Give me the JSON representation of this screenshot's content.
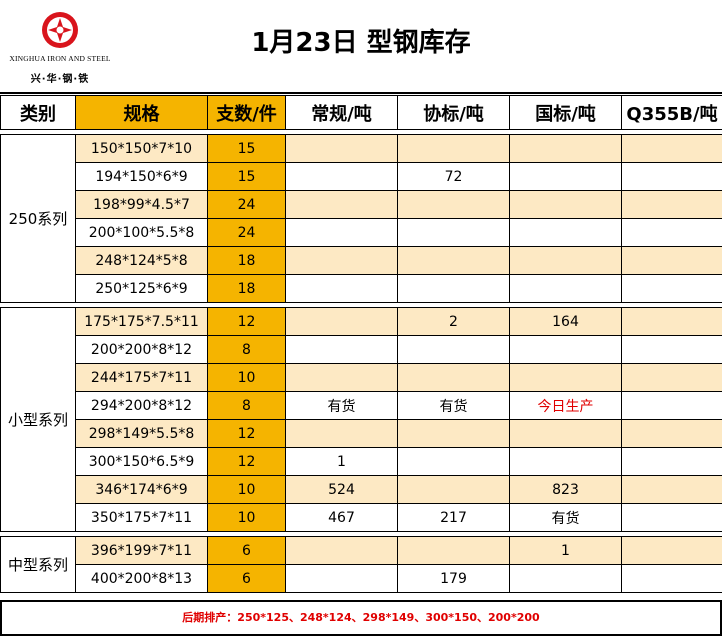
{
  "logo": {
    "english": "XINGHUA IRON AND STEEL",
    "chinese": "兴·华·钢·铁",
    "accent_color": "#d9141c"
  },
  "title": "1月23日 型钢库存",
  "columns": [
    "类别",
    "规格",
    "支数/件",
    "常规/吨",
    "协标/吨",
    "国标/吨",
    "Q355B/吨"
  ],
  "colors": {
    "orange": "#f5b400",
    "stripe": "#fde9c4",
    "red": "#e00000"
  },
  "groups": [
    {
      "name": "250系列",
      "rows": [
        {
          "spec": "150*150*7*10",
          "qty": "15",
          "regular": "",
          "assoc": "",
          "national": "",
          "q355b": ""
        },
        {
          "spec": "194*150*6*9",
          "qty": "15",
          "regular": "",
          "assoc": "72",
          "national": "",
          "q355b": ""
        },
        {
          "spec": "198*99*4.5*7",
          "qty": "24",
          "regular": "",
          "assoc": "",
          "national": "",
          "q355b": ""
        },
        {
          "spec": "200*100*5.5*8",
          "qty": "24",
          "regular": "",
          "assoc": "",
          "national": "",
          "q355b": ""
        },
        {
          "spec": "248*124*5*8",
          "qty": "18",
          "regular": "",
          "assoc": "",
          "national": "",
          "q355b": ""
        },
        {
          "spec": "250*125*6*9",
          "qty": "18",
          "regular": "",
          "assoc": "",
          "national": "",
          "q355b": ""
        }
      ]
    },
    {
      "name": "小型系列",
      "rows": [
        {
          "spec": "175*175*7.5*11",
          "qty": "12",
          "regular": "",
          "assoc": "2",
          "national": "164",
          "q355b": ""
        },
        {
          "spec": "200*200*8*12",
          "qty": "8",
          "regular": "",
          "assoc": "",
          "national": "",
          "q355b": ""
        },
        {
          "spec": "244*175*7*11",
          "qty": "10",
          "regular": "",
          "assoc": "",
          "national": "",
          "q355b": ""
        },
        {
          "spec": "294*200*8*12",
          "qty": "8",
          "regular": "有货",
          "assoc": "有货",
          "national": "今日生产",
          "q355b": ""
        },
        {
          "spec": "298*149*5.5*8",
          "qty": "12",
          "regular": "",
          "assoc": "",
          "national": "",
          "q355b": ""
        },
        {
          "spec": "300*150*6.5*9",
          "qty": "12",
          "regular": "1",
          "assoc": "",
          "national": "",
          "q355b": ""
        },
        {
          "spec": "346*174*6*9",
          "qty": "10",
          "regular": "524",
          "assoc": "",
          "national": "823",
          "q355b": ""
        },
        {
          "spec": "350*175*7*11",
          "qty": "10",
          "regular": "467",
          "assoc": "217",
          "national": "有货",
          "q355b": ""
        }
      ]
    },
    {
      "name": "中型系列",
      "rows": [
        {
          "spec": "396*199*7*11",
          "qty": "6",
          "regular": "",
          "assoc": "",
          "national": "1",
          "q355b": ""
        },
        {
          "spec": "400*200*8*13",
          "qty": "6",
          "regular": "",
          "assoc": "179",
          "national": "",
          "q355b": ""
        }
      ]
    }
  ],
  "footer": "后期排产：250*125、248*124、298*149、300*150、200*200"
}
